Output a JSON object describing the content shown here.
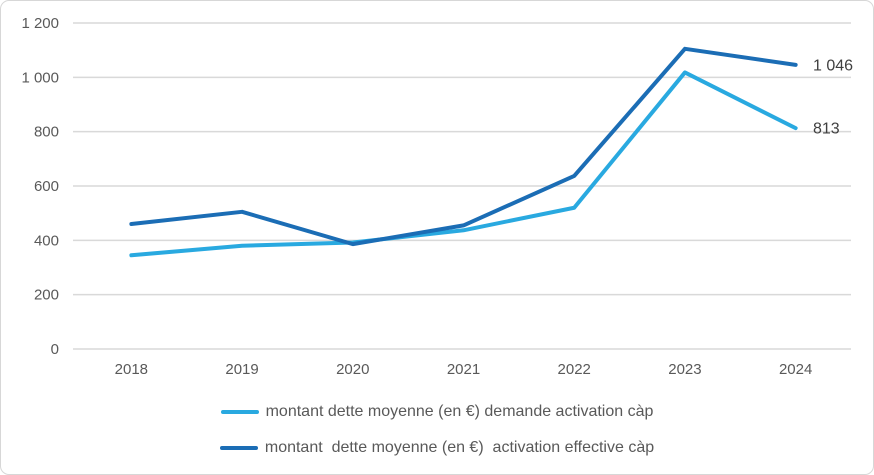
{
  "chart_data": {
    "type": "line",
    "title": "",
    "xlabel": "",
    "ylabel": "",
    "grid": true,
    "legend_position": "bottom",
    "categories": [
      "2018",
      "2019",
      "2020",
      "2021",
      "2022",
      "2023",
      "2024"
    ],
    "series": [
      {
        "name": "montant dette moyenne (en €) demande activation càp",
        "color": "#29A9E0",
        "values": [
          345,
          380,
          392,
          437,
          520,
          1018,
          813
        ],
        "end_label": "813"
      },
      {
        "name": "montant  dette moyenne (en €)  activation effective càp",
        "color": "#1B6DB5",
        "values": [
          460,
          505,
          386,
          455,
          637,
          1105,
          1046
        ],
        "end_label": "1 046"
      }
    ],
    "y_axis": {
      "range": [
        0,
        1200
      ],
      "tick_values": [
        0,
        200,
        400,
        600,
        800,
        1000,
        1200
      ],
      "tick_labels": [
        "0",
        "200",
        "400",
        "600",
        "800",
        "1 000",
        "1 200"
      ]
    }
  },
  "colors": {
    "grid": "#D9D9D9",
    "axis_text": "#595959",
    "data_label_text": "#404040",
    "border": "#D7D7D7",
    "background": "#FFFFFF"
  }
}
